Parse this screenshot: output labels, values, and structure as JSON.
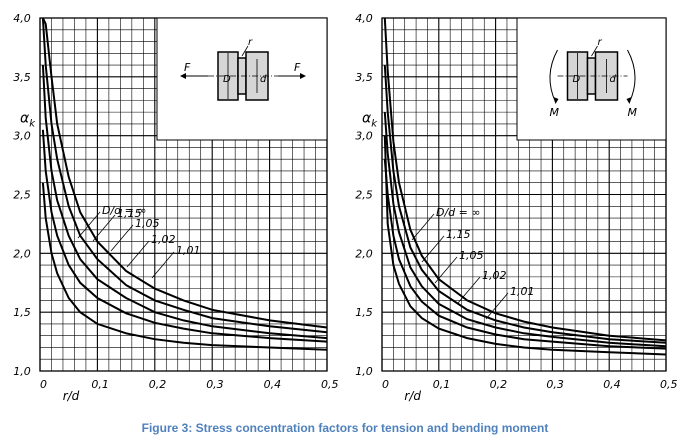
{
  "caption": "Figure 3: Stress concentration factors for tension and bending moment",
  "chart_data": [
    {
      "type": "line",
      "xlabel": "r/d",
      "ylabel": "αk",
      "xlim": [
        0,
        0.5
      ],
      "ylim": [
        1.0,
        4.0
      ],
      "x_ticks": [
        "0",
        "0,1",
        "0,2",
        "0,3",
        "0,4",
        "0,5"
      ],
      "y_ticks": [
        "1,0",
        "1,5",
        "2,0",
        "2,5",
        "3,0",
        "3,5",
        "4,0"
      ],
      "grid": true,
      "inset": {
        "load": "tension",
        "labels": {
          "force_left": "F",
          "force_right": "F",
          "D": "D",
          "d": "d",
          "r": "r"
        }
      },
      "series": [
        {
          "name": "D/d = ∞",
          "x": [
            0.005,
            0.01,
            0.02,
            0.03,
            0.05,
            0.07,
            0.1,
            0.15,
            0.2,
            0.25,
            0.3,
            0.4,
            0.5
          ],
          "y": [
            4.0,
            3.95,
            3.5,
            3.1,
            2.65,
            2.35,
            2.1,
            1.85,
            1.7,
            1.6,
            1.52,
            1.43,
            1.37
          ]
        },
        {
          "name": "1,15",
          "x": [
            0.005,
            0.01,
            0.02,
            0.03,
            0.05,
            0.07,
            0.1,
            0.15,
            0.2,
            0.25,
            0.3,
            0.4,
            0.5
          ],
          "y": [
            4.0,
            3.6,
            3.1,
            2.8,
            2.4,
            2.15,
            1.95,
            1.73,
            1.6,
            1.52,
            1.45,
            1.38,
            1.33
          ]
        },
        {
          "name": "1,05",
          "x": [
            0.005,
            0.01,
            0.02,
            0.03,
            0.05,
            0.07,
            0.1,
            0.15,
            0.2,
            0.25,
            0.3,
            0.4,
            0.5
          ],
          "y": [
            3.6,
            3.15,
            2.7,
            2.45,
            2.15,
            1.95,
            1.78,
            1.62,
            1.5,
            1.43,
            1.38,
            1.32,
            1.28
          ]
        },
        {
          "name": "1,02",
          "x": [
            0.005,
            0.01,
            0.02,
            0.03,
            0.05,
            0.07,
            0.1,
            0.15,
            0.2,
            0.25,
            0.3,
            0.4,
            0.5
          ],
          "y": [
            3.05,
            2.7,
            2.35,
            2.15,
            1.9,
            1.75,
            1.62,
            1.49,
            1.41,
            1.36,
            1.32,
            1.28,
            1.25
          ]
        },
        {
          "name": "1,01",
          "x": [
            0.005,
            0.01,
            0.02,
            0.03,
            0.05,
            0.07,
            0.1,
            0.15,
            0.2,
            0.25,
            0.3,
            0.4,
            0.5
          ],
          "y": [
            2.6,
            2.3,
            2.0,
            1.83,
            1.62,
            1.5,
            1.4,
            1.32,
            1.27,
            1.24,
            1.22,
            1.2,
            1.18
          ]
        }
      ]
    },
    {
      "type": "line",
      "xlabel": "r/d",
      "ylabel": "αk",
      "xlim": [
        0,
        0.5
      ],
      "ylim": [
        1.0,
        4.0
      ],
      "x_ticks": [
        "0",
        "0,1",
        "0,2",
        "0,3",
        "0,4",
        "0,5"
      ],
      "y_ticks": [
        "1,0",
        "1,5",
        "2,0",
        "2,5",
        "3,0",
        "3,5",
        "4,0"
      ],
      "grid": true,
      "inset": {
        "load": "bending moment",
        "labels": {
          "moment_left": "M",
          "moment_right": "M",
          "D": "D",
          "d": "d",
          "r": "r"
        }
      },
      "series": [
        {
          "name": "D/d = ∞",
          "x": [
            0.005,
            0.01,
            0.02,
            0.03,
            0.05,
            0.07,
            0.1,
            0.15,
            0.2,
            0.25,
            0.3,
            0.4,
            0.5
          ],
          "y": [
            4.0,
            3.55,
            2.95,
            2.6,
            2.2,
            1.98,
            1.78,
            1.6,
            1.49,
            1.42,
            1.37,
            1.3,
            1.26
          ]
        },
        {
          "name": "1,15",
          "x": [
            0.005,
            0.01,
            0.02,
            0.03,
            0.05,
            0.07,
            0.1,
            0.15,
            0.2,
            0.25,
            0.3,
            0.4,
            0.5
          ],
          "y": [
            3.6,
            3.2,
            2.7,
            2.4,
            2.05,
            1.86,
            1.68,
            1.52,
            1.43,
            1.37,
            1.33,
            1.27,
            1.24
          ]
        },
        {
          "name": "1,05",
          "x": [
            0.005,
            0.01,
            0.02,
            0.03,
            0.05,
            0.07,
            0.1,
            0.15,
            0.2,
            0.25,
            0.3,
            0.4,
            0.5
          ],
          "y": [
            3.2,
            2.85,
            2.42,
            2.18,
            1.88,
            1.72,
            1.57,
            1.44,
            1.37,
            1.32,
            1.29,
            1.24,
            1.21
          ]
        },
        {
          "name": "1,02",
          "x": [
            0.005,
            0.01,
            0.02,
            0.03,
            0.05,
            0.07,
            0.1,
            0.15,
            0.2,
            0.25,
            0.3,
            0.4,
            0.5
          ],
          "y": [
            2.8,
            2.5,
            2.15,
            1.95,
            1.72,
            1.59,
            1.47,
            1.37,
            1.31,
            1.27,
            1.25,
            1.21,
            1.19
          ]
        },
        {
          "name": "1,01",
          "x": [
            0.005,
            0.01,
            0.02,
            0.03,
            0.05,
            0.07,
            0.1,
            0.15,
            0.2,
            0.25,
            0.3,
            0.4,
            0.5
          ],
          "y": [
            3.0,
            2.25,
            1.9,
            1.74,
            1.55,
            1.45,
            1.36,
            1.28,
            1.23,
            1.2,
            1.18,
            1.16,
            1.14
          ]
        }
      ]
    }
  ]
}
